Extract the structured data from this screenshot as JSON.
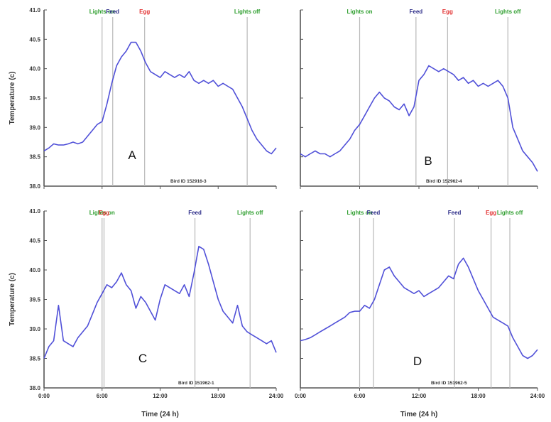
{
  "colors": {
    "line": "#5050d8",
    "axis": "#555555",
    "lights": "#2e9e2e",
    "feed": "#2c2c88",
    "egg": "#e23030",
    "marker": "#b8b8b8"
  },
  "chart_data": [
    {
      "type": "line",
      "panel": "A",
      "bird_id": "Bird ID 152916-3",
      "xlabel": "",
      "ylabel": "Temperature (c)",
      "xlim": [
        0,
        24
      ],
      "ylim": [
        38.0,
        41.0
      ],
      "xticks": [],
      "yticks": [
        "41.0",
        "40.5",
        "40.0",
        "39.5",
        "39.0",
        "38.5",
        "38.0"
      ],
      "events": [
        {
          "label": "Lights on",
          "x": 6.0
        },
        {
          "label": "Feed",
          "x": 7.1
        },
        {
          "label": "Egg",
          "x": 10.4
        },
        {
          "label": "Lights off",
          "x": 21.0
        }
      ],
      "x": [
        0,
        0.5,
        1,
        1.5,
        2,
        2.5,
        3,
        3.5,
        4,
        4.5,
        5,
        5.5,
        6,
        6.5,
        7,
        7.5,
        8,
        8.5,
        9,
        9.5,
        10,
        10.5,
        11,
        11.5,
        12,
        12.5,
        13,
        13.5,
        14,
        14.5,
        15,
        15.5,
        16,
        16.5,
        17,
        17.5,
        18,
        18.5,
        19,
        19.5,
        20,
        20.5,
        21,
        21.5,
        22,
        22.5,
        23,
        23.5,
        24
      ],
      "values": [
        38.6,
        38.65,
        38.72,
        38.7,
        38.7,
        38.72,
        38.75,
        38.72,
        38.75,
        38.85,
        38.95,
        39.05,
        39.1,
        39.4,
        39.75,
        40.05,
        40.2,
        40.3,
        40.45,
        40.45,
        40.3,
        40.1,
        39.95,
        39.9,
        39.85,
        39.95,
        39.9,
        39.85,
        39.9,
        39.85,
        39.95,
        39.8,
        39.75,
        39.8,
        39.75,
        39.8,
        39.7,
        39.75,
        39.7,
        39.65,
        39.5,
        39.35,
        39.15,
        38.95,
        38.8,
        38.7,
        38.6,
        38.55,
        38.65
      ]
    },
    {
      "type": "line",
      "panel": "B",
      "bird_id": "Bird ID 152962-4",
      "xlabel": "",
      "ylabel": "",
      "xlim": [
        0,
        24
      ],
      "ylim": [
        38.0,
        41.0
      ],
      "xticks": [],
      "yticks": [],
      "events": [
        {
          "label": "Lights on",
          "x": 6.0
        },
        {
          "label": "Feed",
          "x": 11.7
        },
        {
          "label": "Egg",
          "x": 14.9
        },
        {
          "label": "Lights off",
          "x": 21.0
        }
      ],
      "x": [
        0,
        0.5,
        1,
        1.5,
        2,
        2.5,
        3,
        3.5,
        4,
        4.5,
        5,
        5.5,
        6,
        6.5,
        7,
        7.5,
        8,
        8.5,
        9,
        9.5,
        10,
        10.5,
        11,
        11.5,
        12,
        12.5,
        13,
        13.5,
        14,
        14.5,
        15,
        15.5,
        16,
        16.5,
        17,
        17.5,
        18,
        18.5,
        19,
        19.5,
        20,
        20.5,
        21,
        21.5,
        22,
        22.5,
        23,
        23.5,
        24
      ],
      "values": [
        38.55,
        38.5,
        38.55,
        38.6,
        38.55,
        38.55,
        38.5,
        38.55,
        38.6,
        38.7,
        38.8,
        38.95,
        39.05,
        39.2,
        39.35,
        39.5,
        39.6,
        39.5,
        39.45,
        39.35,
        39.3,
        39.4,
        39.2,
        39.35,
        39.8,
        39.9,
        40.05,
        40.0,
        39.95,
        40.0,
        39.95,
        39.9,
        39.8,
        39.85,
        39.75,
        39.8,
        39.7,
        39.75,
        39.7,
        39.75,
        39.8,
        39.7,
        39.5,
        39.0,
        38.8,
        38.6,
        38.5,
        38.4,
        38.25
      ]
    },
    {
      "type": "line",
      "panel": "C",
      "bird_id": "Bird ID 151962-1",
      "xlabel": "Time (24 h)",
      "ylabel": "Temperature (c)",
      "xlim": [
        0,
        24
      ],
      "ylim": [
        38.0,
        41.0
      ],
      "xticks": [
        "0:00",
        "6:00",
        "12:00",
        "18:00",
        "24:00"
      ],
      "yticks": [
        "41.0",
        "40.5",
        "40.0",
        "39.5",
        "39.0",
        "38.5",
        "38.0"
      ],
      "events": [
        {
          "label": "Lights on",
          "x": 6.0
        },
        {
          "label": "Egg",
          "x": 6.2
        },
        {
          "label": "Feed",
          "x": 15.6
        },
        {
          "label": "Lights off",
          "x": 21.3
        }
      ],
      "x": [
        0,
        0.5,
        1,
        1.5,
        2,
        2.5,
        3,
        3.5,
        4,
        4.5,
        5,
        5.5,
        6,
        6.5,
        7,
        7.5,
        8,
        8.5,
        9,
        9.5,
        10,
        10.5,
        11,
        11.5,
        12,
        12.5,
        13,
        13.5,
        14,
        14.5,
        15,
        15.5,
        16,
        16.5,
        17,
        17.5,
        18,
        18.5,
        19,
        19.5,
        20,
        20.5,
        21,
        21.5,
        22,
        22.5,
        23,
        23.5,
        24
      ],
      "values": [
        38.5,
        38.7,
        38.8,
        39.4,
        38.8,
        38.75,
        38.7,
        38.85,
        38.95,
        39.05,
        39.25,
        39.45,
        39.6,
        39.75,
        39.7,
        39.8,
        39.95,
        39.75,
        39.65,
        39.35,
        39.55,
        39.45,
        39.3,
        39.15,
        39.5,
        39.75,
        39.7,
        39.65,
        39.6,
        39.75,
        39.55,
        39.95,
        40.4,
        40.35,
        40.1,
        39.8,
        39.5,
        39.3,
        39.2,
        39.1,
        39.4,
        39.05,
        38.95,
        38.9,
        38.85,
        38.8,
        38.75,
        38.8,
        38.6
      ]
    },
    {
      "type": "line",
      "panel": "D",
      "bird_id": "Bird ID 151962-5",
      "xlabel": "Time (24 h)",
      "ylabel": "",
      "xlim": [
        0,
        24
      ],
      "ylim": [
        38.0,
        41.0
      ],
      "xticks": [
        "0:00",
        "6:00",
        "12:00",
        "18:00",
        "24:00"
      ],
      "yticks": [],
      "events": [
        {
          "label": "Lights on",
          "x": 6.0
        },
        {
          "label": "Feed",
          "x": 7.4
        },
        {
          "label": "Feed",
          "x": 15.6
        },
        {
          "label": "Egg",
          "x": 19.3
        },
        {
          "label": "Lights off",
          "x": 21.2
        }
      ],
      "x": [
        0,
        0.5,
        1,
        1.5,
        2,
        2.5,
        3,
        3.5,
        4,
        4.5,
        5,
        5.5,
        6,
        6.5,
        7,
        7.5,
        8,
        8.5,
        9,
        9.5,
        10,
        10.5,
        11,
        11.5,
        12,
        12.5,
        13,
        13.5,
        14,
        14.5,
        15,
        15.5,
        16,
        16.5,
        17,
        17.5,
        18,
        18.5,
        19,
        19.5,
        20,
        20.5,
        21,
        21.5,
        22,
        22.5,
        23,
        23.5,
        24
      ],
      "values": [
        38.8,
        38.82,
        38.85,
        38.9,
        38.95,
        39.0,
        39.05,
        39.1,
        39.15,
        39.2,
        39.28,
        39.3,
        39.3,
        39.4,
        39.35,
        39.5,
        39.75,
        40.0,
        40.05,
        39.9,
        39.8,
        39.7,
        39.65,
        39.6,
        39.65,
        39.55,
        39.6,
        39.65,
        39.7,
        39.8,
        39.9,
        39.85,
        40.1,
        40.2,
        40.05,
        39.85,
        39.65,
        39.5,
        39.35,
        39.2,
        39.15,
        39.1,
        39.05,
        38.85,
        38.7,
        38.55,
        38.5,
        38.55,
        38.65
      ]
    }
  ]
}
